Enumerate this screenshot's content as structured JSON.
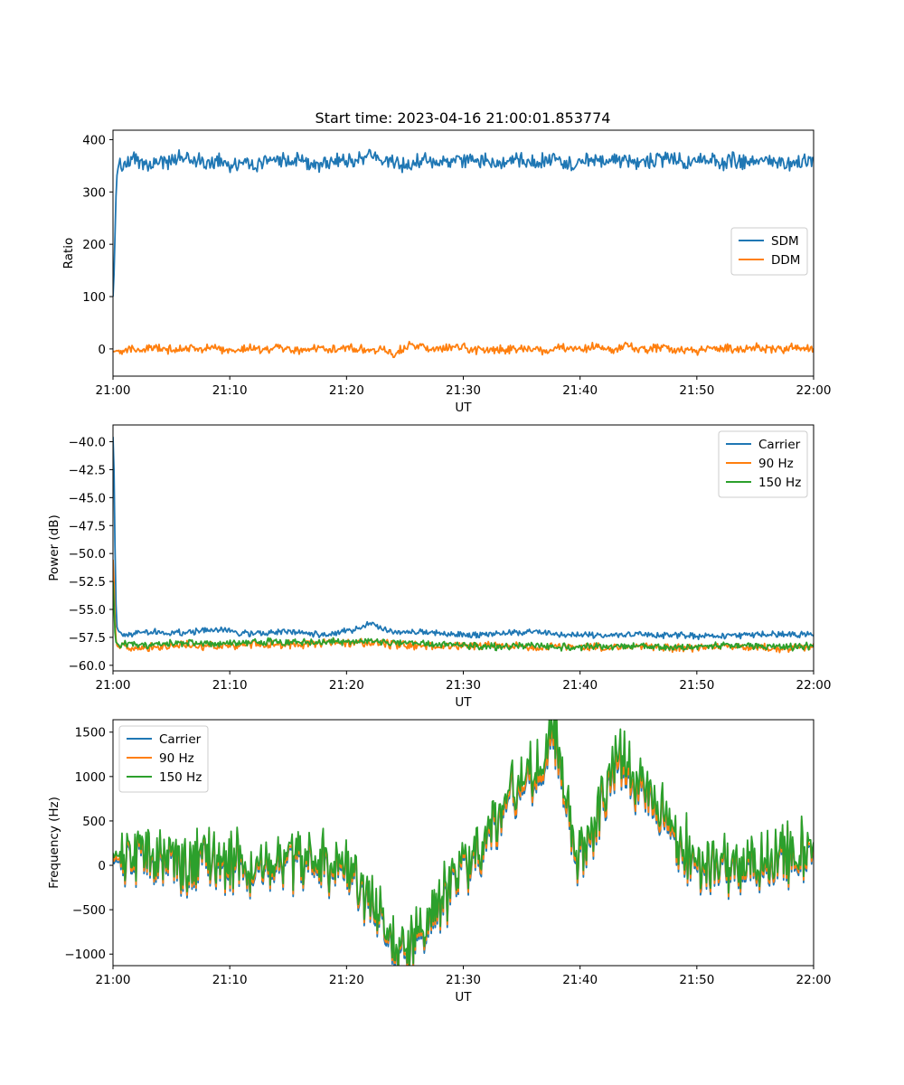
{
  "figure": {
    "title": "Start time: 2023-04-16 21:00:01.853774"
  },
  "chart_data": [
    {
      "type": "line",
      "title": "Start time: 2023-04-16 21:00:01.853774",
      "xlabel": "UT",
      "ylabel": "Ratio",
      "xlim": [
        0,
        60
      ],
      "x_tick_labels": [
        "21:00",
        "21:10",
        "21:20",
        "21:30",
        "21:40",
        "21:50",
        "22:00"
      ],
      "ylim": [
        -52,
        418
      ],
      "y_ticks": [
        0,
        100,
        200,
        300,
        400
      ],
      "y_tick_labels": [
        "0",
        "100",
        "200",
        "300",
        "400"
      ],
      "legend": "center-right",
      "grid": false,
      "series": [
        {
          "name": "SDM",
          "color": "#1f77b4",
          "x": [
            0,
            0.1,
            0.3,
            0.5,
            1,
            2,
            3,
            4,
            5,
            6,
            7,
            8,
            9,
            10,
            11,
            12,
            13,
            14,
            15,
            16,
            17,
            18,
            19,
            20,
            21,
            22,
            23,
            24,
            25,
            26,
            27,
            28,
            29,
            30,
            31,
            32,
            33,
            34,
            35,
            36,
            37,
            38,
            39,
            40,
            41,
            42,
            43,
            44,
            45,
            46,
            47,
            48,
            49,
            50,
            51,
            52,
            53,
            54,
            55,
            56,
            57,
            58,
            59,
            60
          ],
          "values": [
            100,
            150,
            330,
            352,
            355,
            362,
            350,
            360,
            356,
            370,
            362,
            350,
            365,
            352,
            358,
            345,
            360,
            363,
            357,
            360,
            355,
            352,
            360,
            356,
            365,
            372,
            358,
            360,
            350,
            357,
            362,
            356,
            360,
            360,
            358,
            362,
            355,
            358,
            360,
            356,
            362,
            360,
            352,
            358,
            360,
            355,
            362,
            358,
            357,
            358,
            362,
            365,
            355,
            358,
            360,
            355,
            360,
            358,
            357,
            362,
            355,
            356,
            358,
            362
          ],
          "noise_amplitude": 18
        },
        {
          "name": "DDM",
          "color": "#ff7f0e",
          "x": [
            0,
            1,
            2,
            3,
            4,
            5,
            6,
            7,
            8,
            9,
            10,
            11,
            12,
            13,
            14,
            15,
            16,
            17,
            18,
            19,
            20,
            21,
            22,
            23,
            24,
            25,
            26,
            27,
            28,
            29,
            30,
            31,
            32,
            33,
            34,
            35,
            36,
            37,
            38,
            39,
            40,
            41,
            42,
            43,
            44,
            45,
            46,
            47,
            48,
            49,
            50,
            51,
            52,
            53,
            54,
            55,
            56,
            57,
            58,
            59,
            60
          ],
          "values": [
            -5,
            0,
            -3,
            2,
            0,
            -2,
            3,
            0,
            -1,
            2,
            -3,
            0,
            1,
            -2,
            4,
            0,
            -3,
            2,
            0,
            -1,
            3,
            0,
            -2,
            1,
            -12,
            5,
            8,
            -4,
            0,
            2,
            4,
            -3,
            1,
            0,
            -2,
            3,
            0,
            -5,
            2,
            0,
            -1,
            4,
            0,
            -3,
            8,
            -2,
            0,
            3,
            -1,
            0,
            -4,
            2,
            0,
            1,
            -2,
            3,
            0,
            -1,
            2,
            0,
            1
          ],
          "noise_amplitude": 10
        }
      ]
    },
    {
      "type": "line",
      "xlabel": "UT",
      "ylabel": "Power (dB)",
      "xlim": [
        0,
        60
      ],
      "x_tick_labels": [
        "21:00",
        "21:10",
        "21:20",
        "21:30",
        "21:40",
        "21:50",
        "22:00"
      ],
      "ylim": [
        -60.5,
        -38.5
      ],
      "y_ticks": [
        -60,
        -57.5,
        -55,
        -52.5,
        -50,
        -47.5,
        -45,
        -42.5,
        -40
      ],
      "y_tick_labels": [
        "−60.0",
        "−57.5",
        "−55.0",
        "−52.5",
        "−50.0",
        "−47.5",
        "−45.0",
        "−42.5",
        "−40.0"
      ],
      "legend": "top-right",
      "grid": false,
      "series": [
        {
          "name": "Carrier",
          "color": "#1f77b4",
          "x": [
            0,
            0.1,
            0.2,
            0.3,
            0.5,
            1,
            3,
            6,
            9,
            12,
            15,
            18,
            21,
            22,
            24,
            27,
            30,
            33,
            36,
            39,
            42,
            45,
            48,
            51,
            54,
            57,
            60
          ],
          "values": [
            -39.5,
            -43,
            -52,
            -56.5,
            -57,
            -57.2,
            -57.0,
            -57.1,
            -56.8,
            -57.2,
            -57.0,
            -57.3,
            -56.8,
            -56.2,
            -57.1,
            -57.0,
            -57.3,
            -57.2,
            -57.0,
            -57.3,
            -57.4,
            -57.2,
            -57.3,
            -57.4,
            -57.3,
            -57.2,
            -57.3
          ],
          "noise_amplitude": 0.35
        },
        {
          "name": "90 Hz",
          "color": "#ff7f0e",
          "x": [
            0,
            0.1,
            0.2,
            0.3,
            0.5,
            1,
            3,
            6,
            9,
            12,
            15,
            18,
            21,
            24,
            27,
            30,
            33,
            36,
            39,
            42,
            45,
            48,
            51,
            54,
            57,
            60
          ],
          "values": [
            -50.5,
            -53,
            -57,
            -58.2,
            -58.4,
            -58.3,
            -58.4,
            -58.2,
            -58.3,
            -58.1,
            -58.2,
            -58.0,
            -58.0,
            -58.1,
            -58.3,
            -58.3,
            -58.2,
            -58.4,
            -58.3,
            -58.4,
            -58.2,
            -58.5,
            -58.3,
            -58.4,
            -58.5,
            -58.4
          ],
          "noise_amplitude": 0.45
        },
        {
          "name": "150 Hz",
          "color": "#2ca02c",
          "x": [
            0,
            0.1,
            0.2,
            0.3,
            0.5,
            1,
            3,
            6,
            9,
            12,
            15,
            18,
            21,
            24,
            27,
            30,
            33,
            36,
            39,
            42,
            45,
            48,
            51,
            54,
            57,
            60
          ],
          "values": [
            -52.5,
            -55,
            -57.8,
            -58.0,
            -58.2,
            -58.1,
            -58.2,
            -58.0,
            -58.1,
            -57.9,
            -58.0,
            -57.9,
            -57.8,
            -58.0,
            -58.1,
            -58.2,
            -58.3,
            -58.2,
            -58.4,
            -58.3,
            -58.3,
            -58.4,
            -58.3,
            -58.2,
            -58.4,
            -58.3
          ],
          "noise_amplitude": 0.4
        }
      ]
    },
    {
      "type": "line",
      "xlabel": "UT",
      "ylabel": "Frequency (Hz)",
      "xlim": [
        0,
        60
      ],
      "x_tick_labels": [
        "21:00",
        "21:10",
        "21:20",
        "21:30",
        "21:40",
        "21:50",
        "22:00"
      ],
      "ylim": [
        -1130,
        1640
      ],
      "y_ticks": [
        -1000,
        -500,
        0,
        500,
        1000,
        1500
      ],
      "y_tick_labels": [
        "−1000",
        "−500",
        "0",
        "500",
        "1000",
        "1500"
      ],
      "legend": "top-left",
      "grid": false,
      "series": [
        {
          "name": "Carrier",
          "color": "#1f77b4",
          "x": [
            0,
            10,
            20,
            24.2,
            25,
            30,
            37.9,
            40,
            43.5,
            50,
            60
          ],
          "values": [
            40,
            -20,
            -60,
            -920,
            -1040,
            -50,
            1380,
            -30,
            1200,
            -70,
            100
          ],
          "noise_amplitude": 300
        },
        {
          "name": "90 Hz",
          "color": "#ff7f0e",
          "x": [
            0,
            10,
            20,
            24.2,
            25,
            30,
            37.9,
            40,
            43.5,
            50,
            60
          ],
          "values": [
            70,
            10,
            -30,
            -880,
            -1000,
            -20,
            1420,
            0,
            1240,
            -40,
            130
          ],
          "noise_amplitude": 300
        },
        {
          "name": "150 Hz",
          "color": "#2ca02c",
          "x": [
            0,
            10,
            20,
            24.2,
            25,
            30,
            37.9,
            40,
            43.5,
            50,
            60
          ],
          "values": [
            110,
            50,
            10,
            -850,
            -960,
            20,
            1500,
            40,
            1330,
            0,
            170
          ],
          "noise_amplitude": 300
        }
      ]
    }
  ]
}
